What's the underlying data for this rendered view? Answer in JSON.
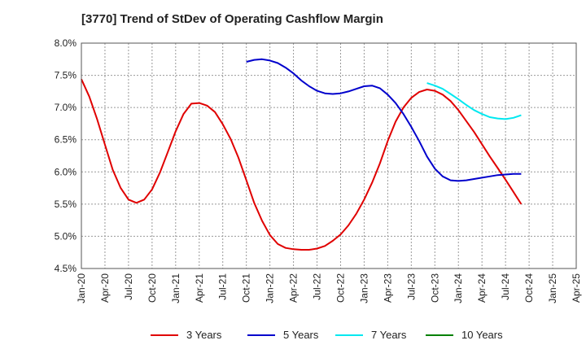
{
  "chart_data": {
    "type": "line",
    "title": "[3770]  Trend of StDev of Operating Cashflow Margin",
    "xlabel": "",
    "ylabel": "",
    "x_tick_labels": [
      "Jan-20",
      "Apr-20",
      "Jul-20",
      "Oct-20",
      "Jan-21",
      "Apr-21",
      "Jul-21",
      "Oct-21",
      "Jan-22",
      "Apr-22",
      "Jul-22",
      "Oct-22",
      "Jan-23",
      "Apr-23",
      "Jul-23",
      "Oct-23",
      "Jan-24",
      "Apr-24",
      "Jul-24",
      "Oct-24",
      "Jan-25",
      "Apr-25"
    ],
    "y_tick_labels": [
      "8.0%",
      "7.5%",
      "7.0%",
      "6.5%",
      "6.0%",
      "5.5%",
      "5.0%",
      "4.5%"
    ],
    "y_ticks": [
      8.0,
      7.5,
      7.0,
      6.5,
      6.0,
      5.5,
      5.0,
      4.5
    ],
    "ylim": [
      4.5,
      8.0
    ],
    "x_range_months": [
      0,
      63
    ],
    "grid": true,
    "legend_position": "bottom",
    "series": [
      {
        "name": "3 Years",
        "color": "#e00000",
        "points": [
          [
            "Jan-20",
            7.44
          ],
          [
            "Feb-20",
            7.17
          ],
          [
            "Mar-20",
            6.82
          ],
          [
            "Apr-20",
            6.42
          ],
          [
            "May-20",
            6.03
          ],
          [
            "Jun-20",
            5.75
          ],
          [
            "Jul-20",
            5.57
          ],
          [
            "Aug-20",
            5.52
          ],
          [
            "Sep-20",
            5.57
          ],
          [
            "Oct-20",
            5.73
          ],
          [
            "Nov-20",
            5.99
          ],
          [
            "Dec-20",
            6.31
          ],
          [
            "Jan-21",
            6.63
          ],
          [
            "Feb-21",
            6.9
          ],
          [
            "Mar-21",
            7.06
          ],
          [
            "Apr-21",
            7.07
          ],
          [
            "May-21",
            7.03
          ],
          [
            "Jun-21",
            6.93
          ],
          [
            "Jul-21",
            6.74
          ],
          [
            "Aug-21",
            6.51
          ],
          [
            "Sep-21",
            6.22
          ],
          [
            "Oct-21",
            5.87
          ],
          [
            "Nov-21",
            5.52
          ],
          [
            "Dec-21",
            5.24
          ],
          [
            "Jan-22",
            5.02
          ],
          [
            "Feb-22",
            4.88
          ],
          [
            "Mar-22",
            4.82
          ],
          [
            "Apr-22",
            4.8
          ],
          [
            "May-22",
            4.79
          ],
          [
            "Jun-22",
            4.79
          ],
          [
            "Jul-22",
            4.81
          ],
          [
            "Aug-22",
            4.85
          ],
          [
            "Sep-22",
            4.93
          ],
          [
            "Oct-22",
            5.03
          ],
          [
            "Nov-22",
            5.17
          ],
          [
            "Dec-22",
            5.35
          ],
          [
            "Jan-23",
            5.57
          ],
          [
            "Feb-23",
            5.83
          ],
          [
            "Mar-23",
            6.13
          ],
          [
            "Apr-23",
            6.48
          ],
          [
            "May-23",
            6.78
          ],
          [
            "Jun-23",
            7.0
          ],
          [
            "Jul-23",
            7.15
          ],
          [
            "Aug-23",
            7.24
          ],
          [
            "Sep-23",
            7.28
          ],
          [
            "Oct-23",
            7.26
          ],
          [
            "Nov-23",
            7.2
          ],
          [
            "Dec-23",
            7.1
          ],
          [
            "Jan-24",
            6.96
          ],
          [
            "Feb-24",
            6.79
          ],
          [
            "Mar-24",
            6.62
          ],
          [
            "Apr-24",
            6.43
          ],
          [
            "May-24",
            6.24
          ],
          [
            "Jun-24",
            6.06
          ],
          [
            "Jul-24",
            5.88
          ],
          [
            "Aug-24",
            5.69
          ],
          [
            "Sep-24",
            5.5
          ]
        ]
      },
      {
        "name": "5 Years",
        "color": "#0000cc",
        "points": [
          [
            "Oct-21",
            7.71
          ],
          [
            "Nov-21",
            7.74
          ],
          [
            "Dec-21",
            7.75
          ],
          [
            "Jan-22",
            7.73
          ],
          [
            "Feb-22",
            7.69
          ],
          [
            "Mar-22",
            7.62
          ],
          [
            "Apr-22",
            7.53
          ],
          [
            "May-22",
            7.42
          ],
          [
            "Jun-22",
            7.33
          ],
          [
            "Jul-22",
            7.26
          ],
          [
            "Aug-22",
            7.22
          ],
          [
            "Sep-22",
            7.21
          ],
          [
            "Oct-22",
            7.22
          ],
          [
            "Nov-22",
            7.25
          ],
          [
            "Dec-22",
            7.29
          ],
          [
            "Jan-23",
            7.33
          ],
          [
            "Feb-23",
            7.34
          ],
          [
            "Mar-23",
            7.3
          ],
          [
            "Apr-23",
            7.2
          ],
          [
            "May-23",
            7.07
          ],
          [
            "Jun-23",
            6.9
          ],
          [
            "Jul-23",
            6.7
          ],
          [
            "Aug-23",
            6.48
          ],
          [
            "Sep-23",
            6.24
          ],
          [
            "Oct-23",
            6.05
          ],
          [
            "Nov-23",
            5.93
          ],
          [
            "Dec-23",
            5.87
          ],
          [
            "Jan-24",
            5.86
          ],
          [
            "Feb-24",
            5.87
          ],
          [
            "Mar-24",
            5.89
          ],
          [
            "Apr-24",
            5.91
          ],
          [
            "May-24",
            5.93
          ],
          [
            "Jun-24",
            5.95
          ],
          [
            "Jul-24",
            5.96
          ],
          [
            "Aug-24",
            5.97
          ],
          [
            "Sep-24",
            5.97
          ]
        ]
      },
      {
        "name": "7 Years",
        "color": "#00e8f0",
        "points": [
          [
            "Sep-23",
            7.38
          ],
          [
            "Oct-23",
            7.34
          ],
          [
            "Nov-23",
            7.29
          ],
          [
            "Dec-23",
            7.21
          ],
          [
            "Jan-24",
            7.13
          ],
          [
            "Feb-24",
            7.04
          ],
          [
            "Mar-24",
            6.96
          ],
          [
            "Apr-24",
            6.9
          ],
          [
            "May-24",
            6.85
          ],
          [
            "Jun-24",
            6.83
          ],
          [
            "Jul-24",
            6.82
          ],
          [
            "Aug-24",
            6.84
          ],
          [
            "Sep-24",
            6.88
          ]
        ]
      },
      {
        "name": "10 Years",
        "color": "#008000",
        "points": []
      }
    ]
  }
}
